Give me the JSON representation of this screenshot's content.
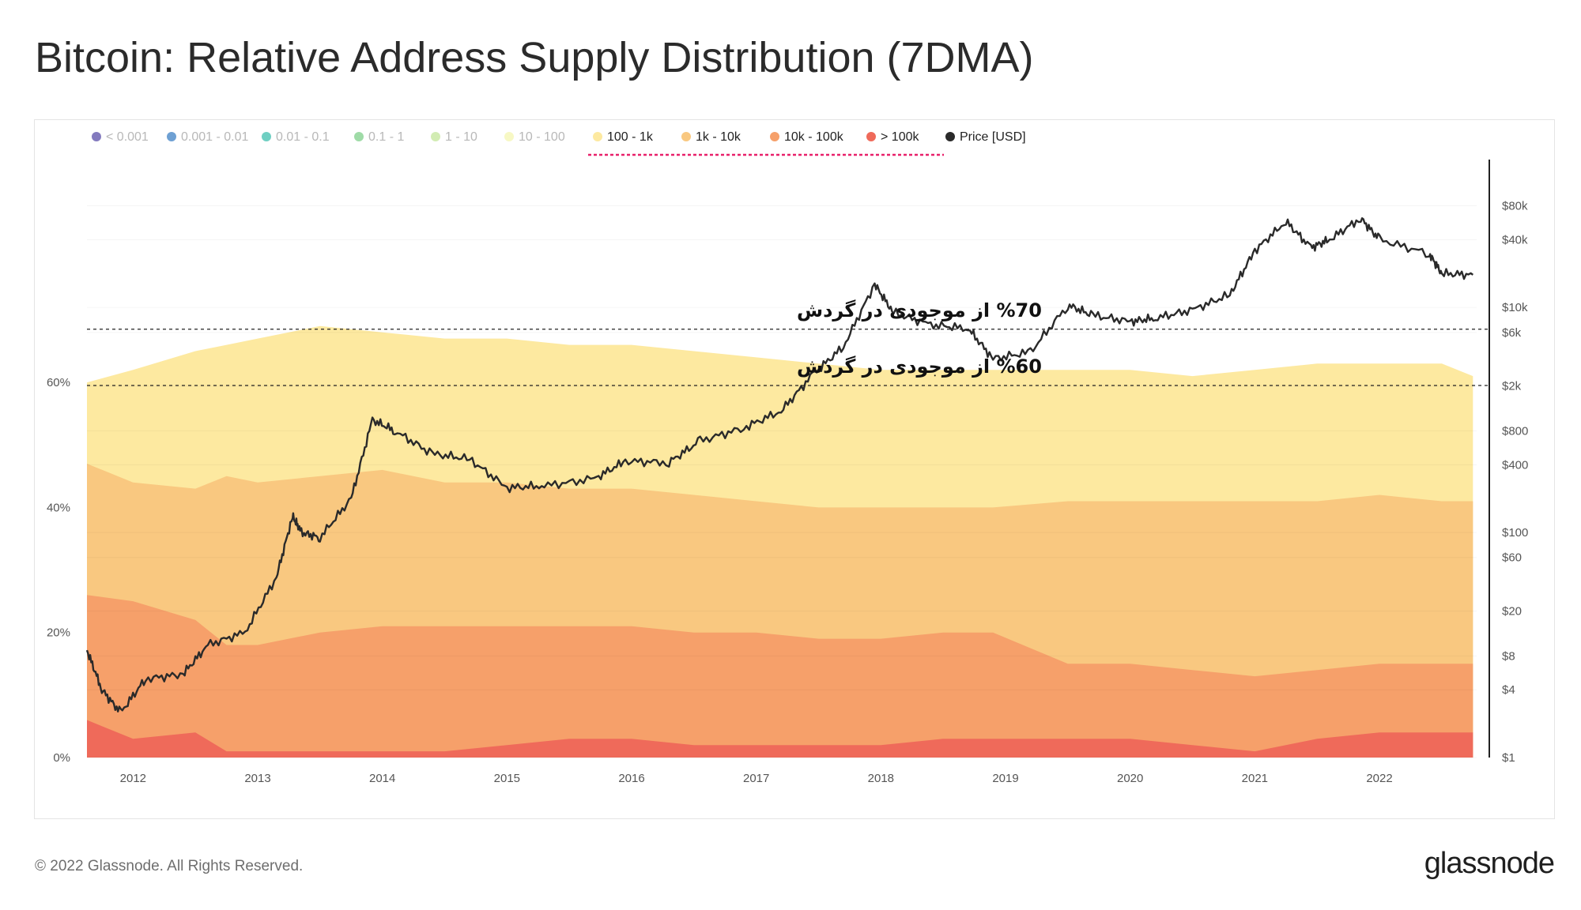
{
  "title": "Bitcoin: Relative Address Supply Distribution (7DMA)",
  "footer": {
    "copyright": "© 2022 Glassnode. All Rights Reserved.",
    "brand": "glassnode"
  },
  "chart_data": {
    "type": "area",
    "title": "Bitcoin: Relative Address Supply Distribution (7DMA)",
    "watermark": "glassnode",
    "legend_position": "top-left",
    "legend": [
      {
        "label": "< 0.001",
        "color": "#5a4ea8",
        "active": false
      },
      {
        "label": "0.001 - 0.01",
        "color": "#3d80c4",
        "active": false
      },
      {
        "label": "0.01 - 0.1",
        "color": "#3fbfae",
        "active": false
      },
      {
        "label": "0.1 - 1",
        "color": "#7fcf8a",
        "active": false
      },
      {
        "label": "1 - 10",
        "color": "#c3e69a",
        "active": false
      },
      {
        "label": "10 - 100",
        "color": "#f4f5b0",
        "active": false
      },
      {
        "label": "100 - 1k",
        "color": "#fde9a0",
        "active": true
      },
      {
        "label": "1k - 10k",
        "color": "#f9c880",
        "active": true
      },
      {
        "label": "10k - 100k",
        "color": "#f6a06a",
        "active": true
      },
      {
        "label": "> 100k",
        "color": "#ef6a5a",
        "active": true
      },
      {
        "label": "Price [USD]",
        "color": "#2a2a2a",
        "active": true
      }
    ],
    "x_ticks": [
      "2012",
      "2013",
      "2014",
      "2015",
      "2016",
      "2017",
      "2018",
      "2019",
      "2020",
      "2021",
      "2022"
    ],
    "y_left_ticks": [
      "0%",
      "20%",
      "40%",
      "60%"
    ],
    "y_left_range": [
      0,
      95
    ],
    "y_right_ticks": [
      "$1",
      "$4",
      "$8",
      "$20",
      "$60",
      "$100",
      "$400",
      "$800",
      "$2k",
      "$6k",
      "$10k",
      "$40k",
      "$80k"
    ],
    "y_right_tick_values": [
      1,
      4,
      8,
      20,
      60,
      100,
      400,
      800,
      2000,
      6000,
      10000,
      40000,
      80000
    ],
    "y_right_range": [
      1,
      190000
    ],
    "x": [
      2011.63,
      2012,
      2012.5,
      2012.75,
      2013,
      2013.5,
      2014,
      2014.5,
      2015,
      2015.5,
      2016,
      2016.5,
      2017,
      2017.5,
      2018,
      2018.5,
      2018.9,
      2019.5,
      2020,
      2020.5,
      2021,
      2021.5,
      2022,
      2022.5,
      2022.75
    ],
    "series_cumulative": [
      {
        "name": "> 100k",
        "color": "#ef6a5a",
        "values": [
          6,
          3,
          4,
          1,
          1,
          1,
          1,
          1,
          2,
          3,
          3,
          2,
          2,
          2,
          2,
          3,
          3,
          3,
          3,
          2,
          1,
          3,
          4,
          4,
          4
        ]
      },
      {
        "name": "10k - 100k",
        "color": "#f6a06a",
        "values": [
          26,
          25,
          22,
          18,
          18,
          20,
          21,
          21,
          21,
          21,
          21,
          20,
          20,
          19,
          19,
          20,
          20,
          15,
          15,
          14,
          13,
          14,
          15,
          15,
          15
        ]
      },
      {
        "name": "1k - 10k",
        "color": "#f9c880",
        "values": [
          47,
          44,
          43,
          45,
          44,
          45,
          46,
          44,
          44,
          43,
          43,
          42,
          41,
          40,
          40,
          40,
          40,
          41,
          41,
          41,
          41,
          41,
          42,
          41,
          41
        ]
      },
      {
        "name": "100 - 1k",
        "color": "#fde9a0",
        "values": [
          60,
          62,
          65,
          66,
          67,
          69,
          68,
          67,
          67,
          66,
          66,
          65,
          64,
          63,
          62,
          62,
          62,
          62,
          62,
          61,
          62,
          63,
          63,
          63,
          61
        ]
      }
    ],
    "price_series": {
      "name": "Price [USD]",
      "x": [
        2011.63,
        2011.75,
        2011.9,
        2012.1,
        2012.4,
        2012.6,
        2012.9,
        2013.15,
        2013.28,
        2013.35,
        2013.5,
        2013.75,
        2013.92,
        2014.1,
        2014.4,
        2014.7,
        2015.0,
        2015.3,
        2015.7,
        2015.95,
        2016.3,
        2016.55,
        2016.9,
        2017.2,
        2017.45,
        2017.7,
        2017.95,
        2018.1,
        2018.4,
        2018.7,
        2018.9,
        2019.2,
        2019.5,
        2019.7,
        2020.0,
        2020.2,
        2020.5,
        2020.8,
        2021.0,
        2021.25,
        2021.45,
        2021.6,
        2021.85,
        2022.0,
        2022.4,
        2022.5,
        2022.75
      ],
      "values": [
        9,
        4,
        2.5,
        5,
        5.5,
        10,
        13,
        40,
        140,
        100,
        90,
        200,
        1000,
        800,
        500,
        450,
        250,
        260,
        300,
        430,
        420,
        650,
        850,
        1200,
        2500,
        4500,
        16000,
        9000,
        7000,
        6500,
        3500,
        4000,
        10500,
        8500,
        7500,
        8000,
        9500,
        13000,
        32000,
        58000,
        34000,
        40000,
        62000,
        40000,
        30000,
        20000,
        19500
      ]
    },
    "annotations": [
      {
        "text": "%70  از موجودی در گردش",
        "y_percent": 68.5
      },
      {
        "text": "%60 از موجودی در گردش",
        "y_percent": 59.5
      }
    ]
  }
}
